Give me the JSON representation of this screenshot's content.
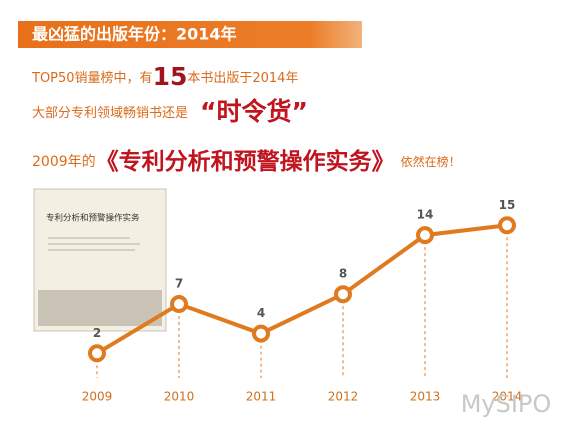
{
  "banner": "最凶猛的出版年份：2014年",
  "line1": {
    "before": "TOP50销量榜中，有",
    "highlight": "15",
    "after": "本书出版于2014年"
  },
  "line2": {
    "before": "大部分专利领域畅销书还是",
    "highlight": "“时令货”"
  },
  "line3": {
    "before": "2009年的",
    "highlight": "《专利分析和预警操作实务》",
    "after": "依然在榜！"
  },
  "book_title": "专利分析和预警操作实务",
  "watermark": "MySIPO",
  "chart_data": {
    "type": "line",
    "categories": [
      "2009",
      "2010",
      "2011",
      "2012",
      "2013",
      "2014"
    ],
    "values": [
      2,
      7,
      4,
      8,
      14,
      15
    ],
    "color": "#e07a1f"
  }
}
